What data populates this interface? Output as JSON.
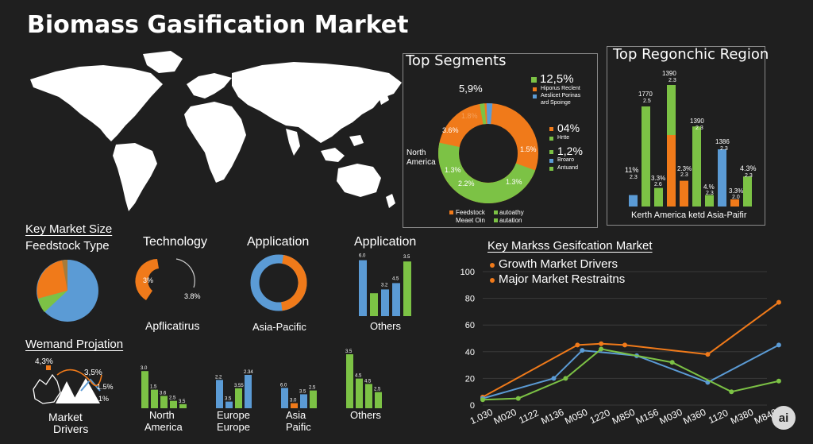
{
  "title": "Biomass Gasification Market",
  "colors": {
    "orange": "#f07a1a",
    "green": "#7cc245",
    "blue": "#5b9bd5",
    "bg": "#1f1f1f"
  },
  "top_segments": {
    "title": "Top Segments",
    "callouts": {
      "pct_a": "12,5%",
      "legend_a1": "Hiporus Reclent",
      "legend_a2": "Aeslicet Porinas",
      "legend_a3": "ard Spoinge",
      "pct_b": "5,9%",
      "pct_c": "04%",
      "legend_c": "Hrtte",
      "pct_d": "1,2%",
      "legend_d1": "Broaro",
      "legend_d2": "Antuand",
      "north": "North",
      "america": "America",
      "legend_feedstock": "Feedstock",
      "legend_autoathy": "autoathy",
      "legend_meaet": "Meaet Oin",
      "legend_autation": "autation"
    },
    "slice_labels": {
      "s1": "1.8%",
      "s2": "3.6%",
      "s3": "1.5%",
      "s4": "1.3%",
      "s5": "2.2%",
      "s6": "1.3%"
    }
  },
  "top_region": {
    "title": "Top Regonchic Region",
    "xlabel": "Kerth America ketd Asia-Paifir",
    "bar_labels": [
      {
        "top": "",
        "sub": ""
      },
      {
        "top": "1770",
        "sub": "2.5"
      },
      {
        "top": "",
        "sub": ""
      },
      {
        "top": "1390",
        "sub": "2.3"
      },
      {
        "top": "",
        "sub": ""
      },
      {
        "top": "1390",
        "sub": "2.3"
      },
      {
        "top": "",
        "sub": ""
      },
      {
        "top": "1386",
        "sub": "2.3"
      },
      {
        "top": "",
        "sub": ""
      },
      {
        "top": "",
        "sub": ""
      }
    ],
    "extra_labels": {
      "a": "11%",
      "a2": "2.3",
      "b": "3.3%",
      "b2": "2.6",
      "c": "2.3%",
      "c2": "2.3",
      "d": "4.%",
      "d2": "2.3",
      "e": "3.3%",
      "e2": "2.0",
      "f": "4.3%",
      "f2": "2.3"
    }
  },
  "key_market": {
    "title": "Key Market Size",
    "subtitle": "Feedstock Type"
  },
  "technology": {
    "title": "Technology",
    "sub": "Apflicatirus",
    "p1": "3%",
    "p2": "3.8%"
  },
  "application1": {
    "title": "Application",
    "sub": "Asia-Pacific"
  },
  "application2": {
    "title": "Application",
    "sub": "Others",
    "labels": [
      "6.0",
      "",
      "3.2",
      "4.5",
      "3.5"
    ]
  },
  "demand": {
    "title": "Wemand Projation",
    "l1": "4,3%",
    "l2": "3,5%",
    "l3": "1.5%",
    "l4": "1%",
    "sub1": "Market",
    "sub2": "Drivers"
  },
  "mini_bars": [
    {
      "sub1": "North",
      "sub2": "America",
      "labels": [
        "3.0",
        "1.5",
        "3.6",
        "2.5",
        "3.5"
      ]
    },
    {
      "sub1": "Europe",
      "sub2": "Europe",
      "labels": [
        "2.2",
        "3.5",
        "3.55",
        "2.34",
        ""
      ]
    },
    {
      "sub1": "Asia",
      "sub2": "Paific",
      "labels": [
        "6.0",
        "3.0",
        "3.5",
        "2.5"
      ]
    },
    {
      "sub1": "Others",
      "sub2": "",
      "labels": [
        "3.5",
        "4.5",
        "4.5",
        "2.5"
      ]
    }
  ],
  "line_panel": {
    "title": "Key Markss Gesifcation Market",
    "legend1": "Growth Market Drivers",
    "legend2": "Major Market Restraitns"
  },
  "chart_data": {
    "type": "line",
    "title": "Key Markss Gesifcation Market",
    "x": [
      "1.030",
      "M020",
      "1122",
      "M136",
      "M050",
      "1220",
      "M850",
      "M156",
      "M030",
      "M360",
      "1120",
      "M380",
      "M840"
    ],
    "ylim": [
      0,
      100
    ],
    "yticks": [
      0,
      20,
      40,
      60,
      80,
      100
    ],
    "series": [
      {
        "name": "Growth Market Drivers",
        "color": "#f07a1a",
        "points": [
          [
            0,
            6
          ],
          [
            4,
            45
          ],
          [
            5,
            46
          ],
          [
            6,
            45
          ],
          [
            9.5,
            38
          ],
          [
            12.5,
            77
          ]
        ]
      },
      {
        "name": "",
        "color": "#5b9bd5",
        "points": [
          [
            0,
            5
          ],
          [
            3,
            20
          ],
          [
            4.2,
            41
          ],
          [
            6.5,
            37
          ],
          [
            9.5,
            17
          ],
          [
            12.5,
            45
          ]
        ]
      },
      {
        "name": "",
        "color": "#7cc245",
        "points": [
          [
            0,
            4
          ],
          [
            1.5,
            5
          ],
          [
            3.5,
            20
          ],
          [
            5,
            42
          ],
          [
            8,
            32
          ],
          [
            10.5,
            10
          ],
          [
            12.5,
            18
          ]
        ]
      }
    ],
    "legend": "top-left"
  },
  "badge": "ai"
}
